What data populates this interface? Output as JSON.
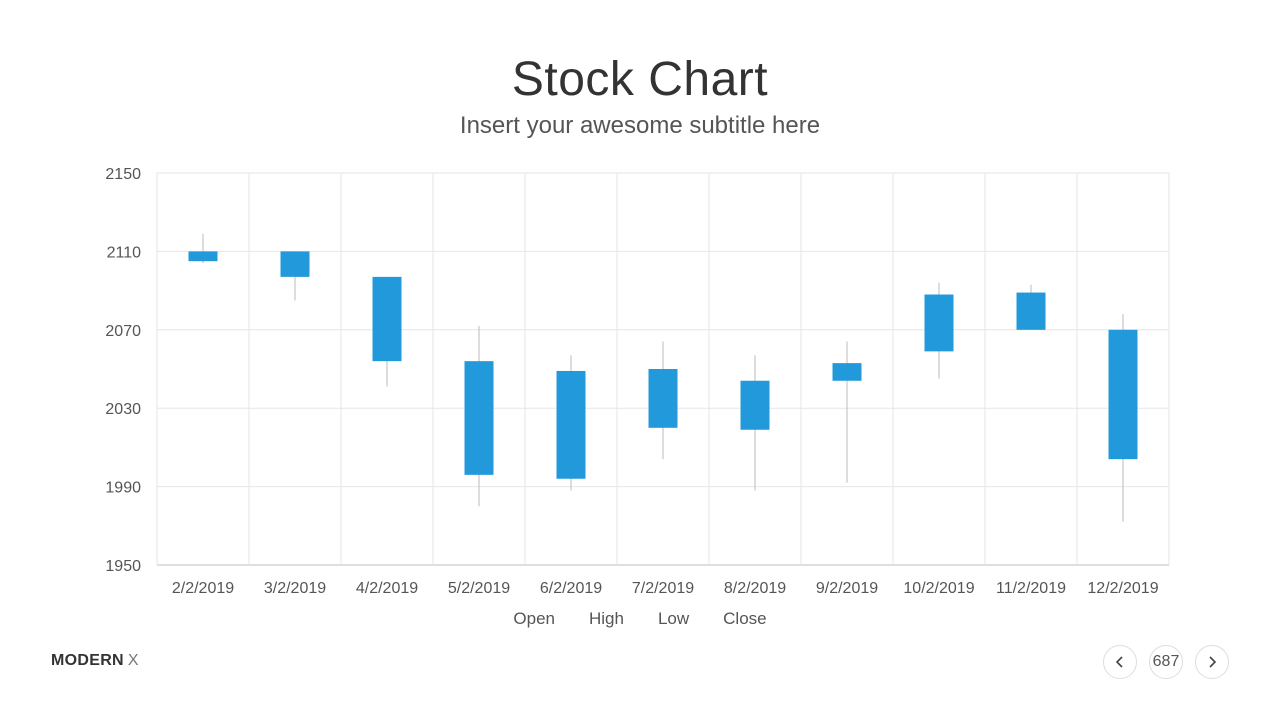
{
  "header": {
    "title": "Stock Chart",
    "subtitle": "Insert your awesome subtitle here"
  },
  "chart_data": {
    "type": "candlestick",
    "categories": [
      "2/2/2019",
      "3/2/2019",
      "4/2/2019",
      "5/2/2019",
      "6/2/2019",
      "7/2/2019",
      "8/2/2019",
      "9/2/2019",
      "10/2/2019",
      "11/2/2019",
      "12/2/2019"
    ],
    "series": [
      {
        "name": "Open",
        "values": [
          2105,
          2110,
          2097,
          2054,
          2049,
          2050,
          2044,
          2053,
          2059,
          2070,
          2004
        ]
      },
      {
        "name": "High",
        "values": [
          2119,
          2110,
          2097,
          2072,
          2057,
          2064,
          2057,
          2064,
          2094,
          2093,
          2078
        ]
      },
      {
        "name": "Low",
        "values": [
          2104,
          2085,
          2041,
          1980,
          1988,
          2004,
          1988,
          1992,
          2045,
          2070,
          1972
        ]
      },
      {
        "name": "Close",
        "values": [
          2110,
          2097,
          2054,
          1996,
          1994,
          2020,
          2019,
          2044,
          2088,
          2089,
          2070
        ]
      }
    ],
    "ylim": [
      1950,
      2150
    ],
    "yticks": [
      1950,
      1990,
      2030,
      2070,
      2110,
      2150
    ],
    "grid": true,
    "legend": "bottom",
    "colors": {
      "body": "#2299DA",
      "wick": "#bbbbbb",
      "grid": "#e6e6e6"
    }
  },
  "footer": {
    "brand_bold": "MODERN",
    "brand_light": "X",
    "page_number": "687",
    "prev_icon": "chevron-left-icon",
    "next_icon": "chevron-right-icon"
  }
}
